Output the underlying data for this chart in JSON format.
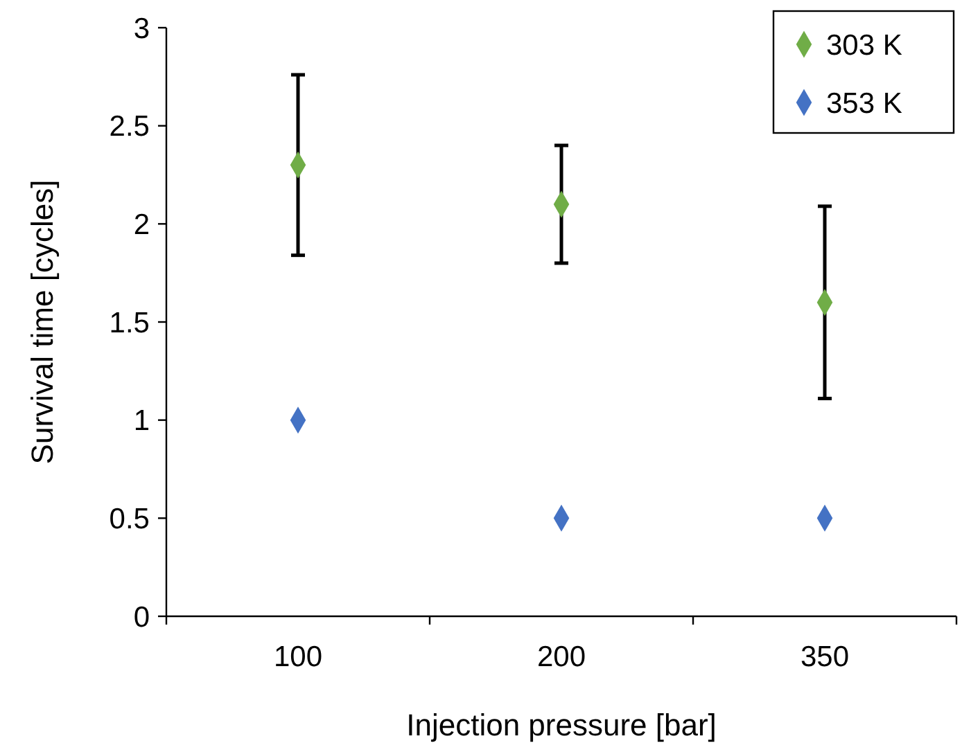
{
  "chart_data": {
    "type": "scatter",
    "xlabel": "Injection pressure [bar]",
    "ylabel": "Survival time [cycles]",
    "categories": [
      "100",
      "200",
      "350"
    ],
    "series": [
      {
        "name": "303 K",
        "color": "#70ad47",
        "values": [
          2.3,
          2.1,
          1.6
        ],
        "errors": [
          [
            1.84,
            2.76
          ],
          [
            1.8,
            2.4
          ],
          [
            1.11,
            2.09
          ]
        ]
      },
      {
        "name": "353 K",
        "color": "#4472c4",
        "values": [
          1,
          0.5,
          0.5
        ]
      }
    ],
    "ylim": [
      0,
      3
    ],
    "yticks": [
      0,
      0.5,
      1,
      1.5,
      2,
      2.5,
      3
    ],
    "legend": "top right",
    "marker": "diamond",
    "grid": false
  }
}
